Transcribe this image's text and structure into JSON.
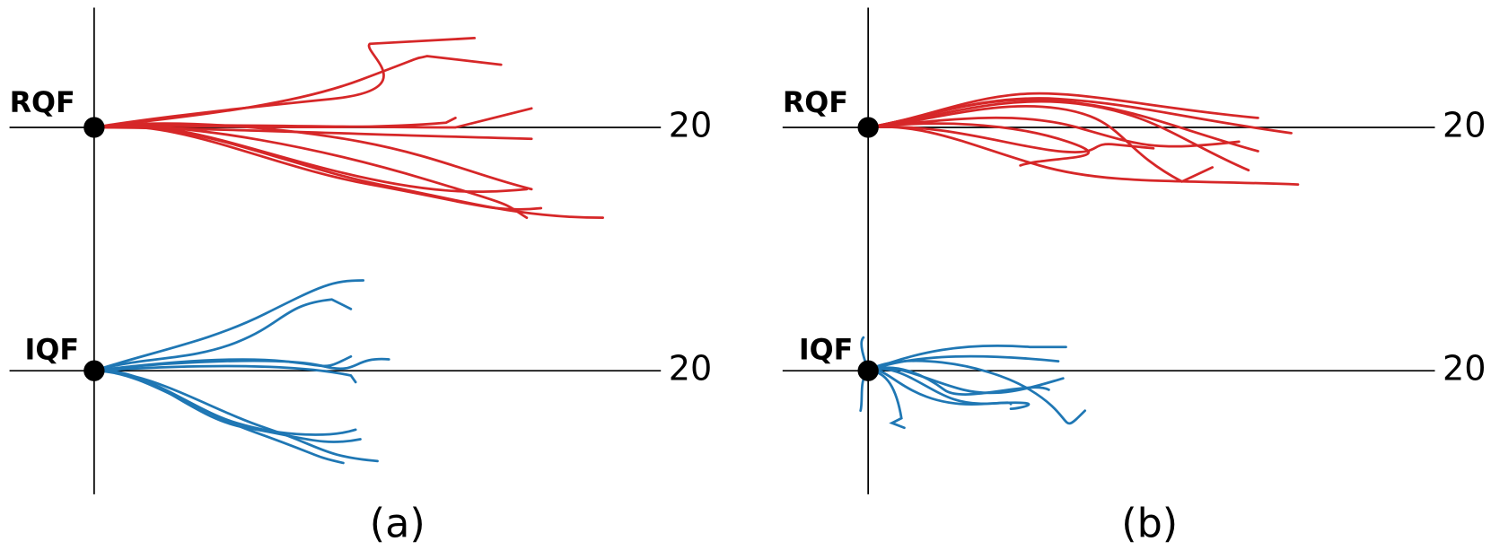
{
  "panels": [
    {
      "label": "(a)",
      "rows": [
        {
          "name": "RQF",
          "end": "20"
        },
        {
          "name": "IQF",
          "end": "20"
        }
      ]
    },
    {
      "label": "(b)",
      "rows": [
        {
          "name": "RQF",
          "end": "20"
        },
        {
          "name": "IQF",
          "end": "20"
        }
      ]
    }
  ]
}
